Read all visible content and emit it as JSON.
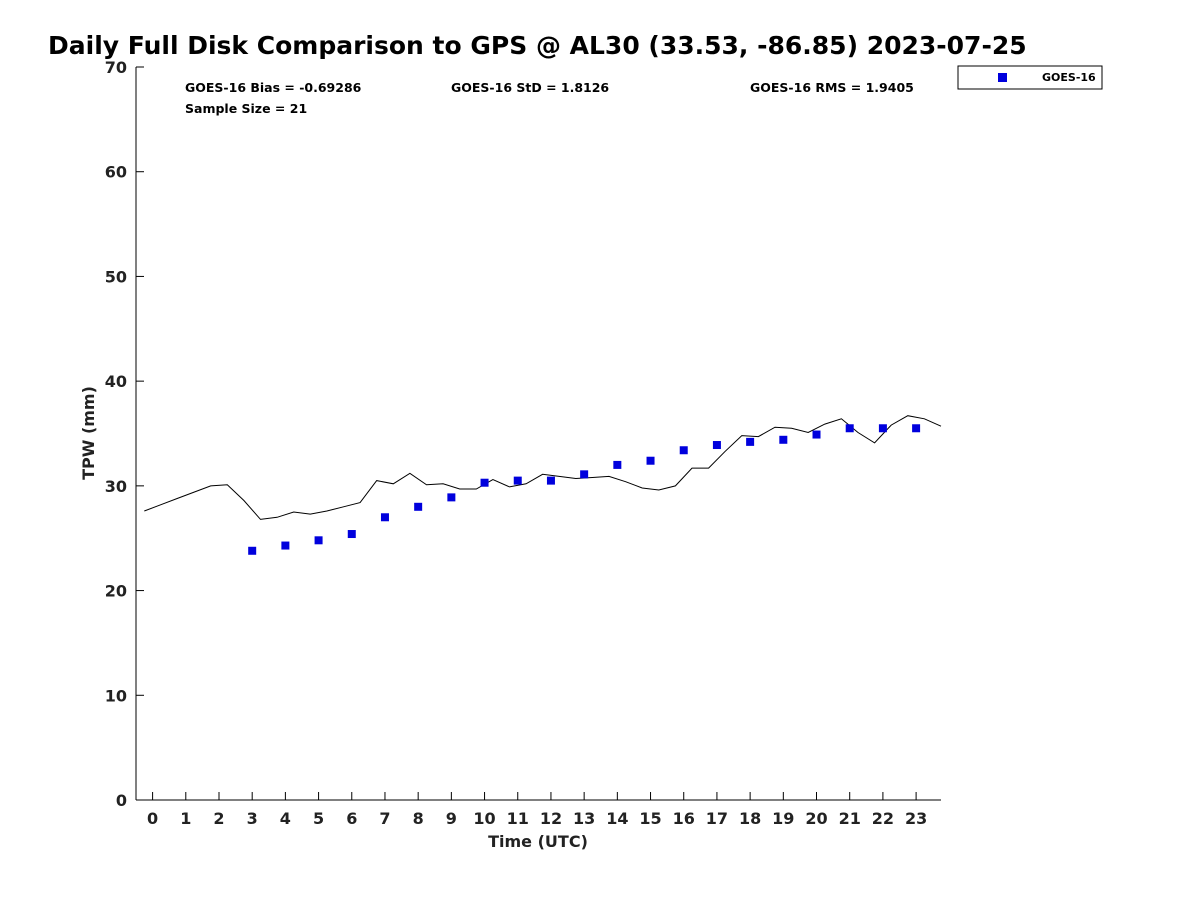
{
  "chart_data": {
    "type": "scatter",
    "title": "Daily Full Disk Comparison to GPS @ AL30 (33.53, -86.85) 2023-07-25",
    "xlabel": "Time (UTC)",
    "ylabel": "TPW (mm)",
    "xlim": [
      -0.5,
      23.75
    ],
    "ylim": [
      0,
      70
    ],
    "x_ticks": [
      0,
      1,
      2,
      3,
      4,
      5,
      6,
      7,
      8,
      9,
      10,
      11,
      12,
      13,
      14,
      15,
      16,
      17,
      18,
      19,
      20,
      21,
      22,
      23
    ],
    "y_ticks": [
      0,
      10,
      20,
      30,
      40,
      50,
      60,
      70
    ],
    "grid": false,
    "legend": {
      "position": "top-right-outside",
      "entries": [
        "GOES-16"
      ]
    },
    "stats": {
      "bias": "GOES-16 Bias = -0.69286",
      "std": "GOES-16 StD = 1.8126",
      "rms": "GOES-16 RMS = 1.9405",
      "sample": "Sample Size = 21"
    },
    "series": [
      {
        "name": "GOES-16",
        "kind": "scatter",
        "color": "#0000dd",
        "marker": "square",
        "x": [
          3,
          4,
          5,
          6,
          7,
          8,
          9,
          10,
          11,
          12,
          13,
          14,
          15,
          16,
          17,
          18,
          19,
          20,
          21,
          22,
          23
        ],
        "y": [
          23.8,
          24.3,
          24.8,
          25.4,
          27.0,
          28.0,
          28.9,
          30.3,
          30.5,
          30.5,
          31.1,
          32.0,
          32.4,
          33.4,
          33.9,
          34.2,
          34.4,
          34.9,
          35.5,
          35.5,
          35.5
        ]
      },
      {
        "kind": "line",
        "color": "#000000",
        "x": [
          -0.25,
          0.25,
          0.75,
          1.25,
          1.75,
          2.25,
          2.75,
          3.25,
          3.75,
          4.25,
          4.75,
          5.25,
          5.75,
          6.25,
          6.75,
          7.25,
          7.75,
          8.25,
          8.75,
          9.25,
          9.75,
          10.25,
          10.75,
          11.25,
          11.75,
          12.25,
          12.75,
          13.25,
          13.75,
          14.25,
          14.75,
          15.25,
          15.75,
          16.25,
          16.75,
          17.25,
          17.75,
          18.25,
          18.75,
          19.25,
          19.75,
          20.25,
          20.75,
          21.25,
          21.75,
          22.25,
          22.75,
          23.25,
          23.75
        ],
        "y": [
          27.6,
          28.2,
          28.8,
          29.4,
          30.0,
          30.1,
          28.6,
          26.8,
          27.0,
          27.5,
          27.3,
          27.6,
          28.0,
          28.4,
          30.5,
          30.2,
          31.2,
          30.1,
          30.2,
          29.7,
          29.7,
          30.6,
          29.9,
          30.2,
          31.1,
          30.9,
          30.7,
          30.8,
          30.9,
          30.4,
          29.8,
          29.6,
          30.0,
          31.7,
          31.7,
          33.3,
          34.8,
          34.7,
          35.6,
          35.5,
          35.1,
          35.9,
          36.4,
          35.1,
          34.1,
          35.8,
          36.7,
          36.4,
          35.7
        ]
      }
    ]
  }
}
